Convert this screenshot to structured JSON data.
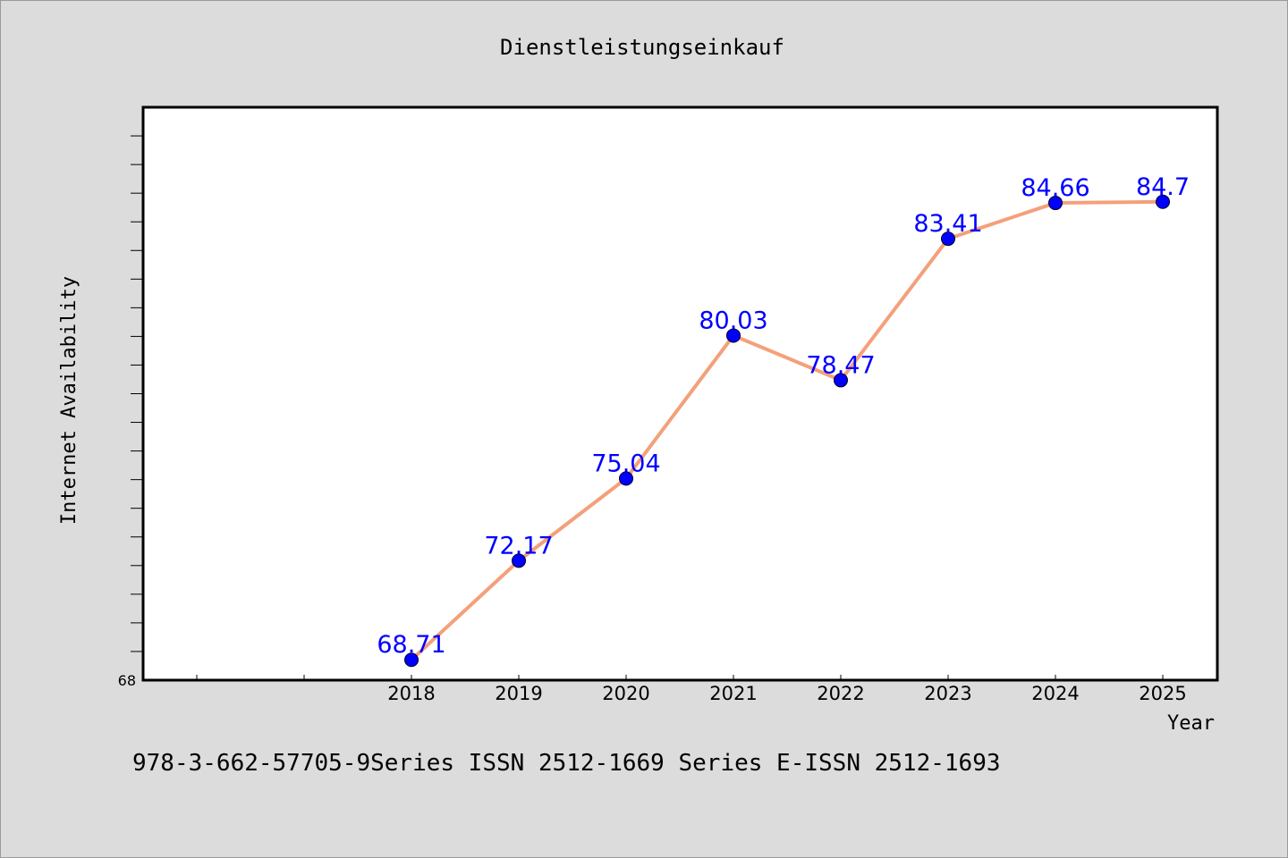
{
  "chart_data": {
    "type": "line",
    "title": "Dienstleistungseinkauf",
    "xlabel": "Year",
    "ylabel": "Internet Availability",
    "categories": [
      "2018",
      "2019",
      "2020",
      "2021",
      "2022",
      "2023",
      "2024",
      "2025"
    ],
    "values": [
      68.71,
      72.17,
      75.04,
      80.03,
      78.47,
      83.41,
      84.66,
      84.7
    ],
    "data_labels": [
      "68.71",
      "72.17",
      "75.04",
      "80.03",
      "78.47",
      "83.41",
      "84.66",
      "84.7"
    ],
    "y_tick_labels": [
      "68"
    ],
    "ylim": [
      68,
      88
    ],
    "grid": false,
    "line_color": "#f4a07a",
    "marker_color": "#0000ff",
    "label_color": "#0000ff"
  },
  "footer": {
    "text": "978-3-662-57705-9Series ISSN 2512-1669 Series E-ISSN 2512-1693"
  }
}
